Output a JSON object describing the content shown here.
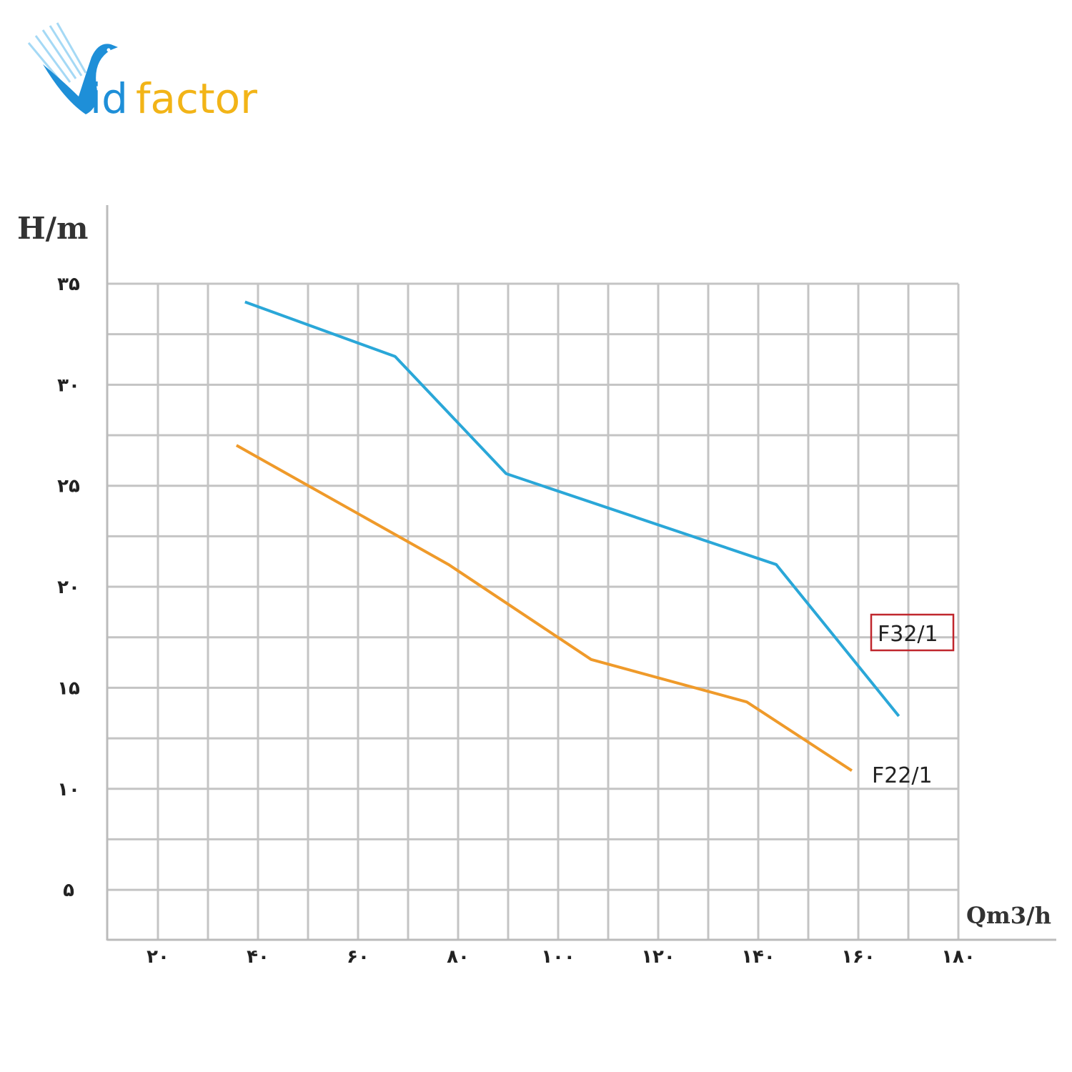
{
  "logo": {
    "text_part1": "id",
    "text_part2": "factor",
    "full_text": "Vidfactor",
    "colors": {
      "blue": "#1e8fd8",
      "gold": "#f2b417"
    }
  },
  "chart_data": {
    "type": "line",
    "title": "",
    "xlabel": "Qm3/h",
    "ylabel": "H/m",
    "xlim": [
      10,
      180
    ],
    "ylim": [
      2.5,
      35
    ],
    "grid": true,
    "x_ticks": [
      {
        "value": 20,
        "label": "۲۰"
      },
      {
        "value": 40,
        "label": "۴۰"
      },
      {
        "value": 60,
        "label": "۶۰"
      },
      {
        "value": 80,
        "label": "۸۰"
      },
      {
        "value": 100,
        "label": "۱۰۰"
      },
      {
        "value": 120,
        "label": "۱۲۰"
      },
      {
        "value": 140,
        "label": "۱۴۰"
      },
      {
        "value": 160,
        "label": "۱۶۰"
      },
      {
        "value": 180,
        "label": "۱۸۰"
      }
    ],
    "y_ticks": [
      {
        "value": 35,
        "label": "۳۵"
      },
      {
        "value": 30,
        "label": "۳۰"
      },
      {
        "value": 25,
        "label": "۲۵"
      },
      {
        "value": 20,
        "label": "۲۰"
      },
      {
        "value": 15,
        "label": "۱۵"
      },
      {
        "value": 10,
        "label": "۱۰"
      },
      {
        "value": 5,
        "label": "۵"
      }
    ],
    "series": [
      {
        "name": "F32/1",
        "color": "#2aa7d8",
        "label_boxed": true,
        "label_box_color": "#c0272d",
        "x": [
          37.4,
          67.4,
          89.6,
          143.6,
          168.1
        ],
        "y": [
          34.1,
          31.4,
          25.6,
          21.1,
          13.6
        ]
      },
      {
        "name": "F22/1",
        "color": "#ef9a2a",
        "label_boxed": false,
        "x": [
          35.7,
          78.1,
          106.6,
          137.7,
          158.7
        ],
        "y": [
          27.0,
          21.1,
          16.4,
          14.3,
          10.9
        ]
      }
    ]
  }
}
